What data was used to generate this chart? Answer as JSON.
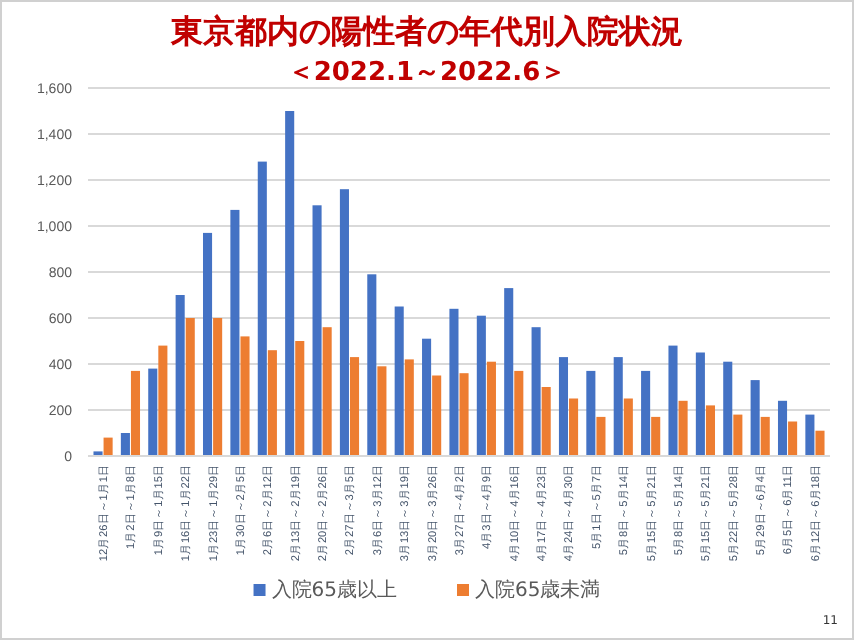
{
  "chart_data": {
    "type": "bar",
    "title": "東京都内の陽性者の年代別入院状況",
    "subtitle": "＜2022.1～2022.6＞",
    "categories": [
      "12月26日～1月1日",
      "1月2日～1月8日",
      "1月9日～1月15日",
      "1月16日～1月22日",
      "1月23日～1月29日",
      "1月30日～2月5日",
      "2月6日～2月12日",
      "2月13日～2月19日",
      "2月20日～2月26日",
      "2月27日～3月5日",
      "3月6日～3月12日",
      "3月13日～3月19日",
      "3月20日～3月26日",
      "3月27日～4月2日",
      "4月3日～4月9日",
      "4月10日～4月16日",
      "4月17日～4月23日",
      "4月24日～4月30日",
      "5月1日～5月7日",
      "5月8日～5月14日",
      "5月15日～5月21日",
      "5月8日～5月14日",
      "5月15日～5月21日",
      "5月22日～5月28日",
      "5月29日～6月4日",
      "6月5日～6月11日",
      "6月12日～6月18日"
    ],
    "series": [
      {
        "name": "入院65歳以上",
        "color": "#4472c4",
        "values": [
          20,
          100,
          380,
          700,
          970,
          1070,
          1280,
          1500,
          1090,
          1160,
          790,
          650,
          510,
          640,
          610,
          730,
          560,
          430,
          370,
          430,
          370,
          480,
          450,
          410,
          330,
          240,
          180
        ]
      },
      {
        "name": "入院65歳未満",
        "color": "#ed7d31",
        "values": [
          80,
          370,
          480,
          600,
          600,
          520,
          460,
          500,
          560,
          430,
          390,
          420,
          350,
          360,
          410,
          370,
          300,
          250,
          170,
          250,
          170,
          240,
          220,
          180,
          170,
          150,
          110
        ]
      }
    ],
    "ylim": [
      0,
      1600
    ],
    "yticks": [
      {
        "value": 0,
        "label": "0"
      },
      {
        "value": 200,
        "label": "200"
      },
      {
        "value": 400,
        "label": "400"
      },
      {
        "value": 600,
        "label": "600"
      },
      {
        "value": 800,
        "label": "800"
      },
      {
        "value": 1000,
        "label": "1,000"
      },
      {
        "value": 1200,
        "label": "1,200"
      },
      {
        "value": 1400,
        "label": "1,400"
      },
      {
        "value": 1600,
        "label": "1,600"
      }
    ],
    "grid": "y",
    "legend": "bottom",
    "annotations": [
      "11"
    ]
  }
}
